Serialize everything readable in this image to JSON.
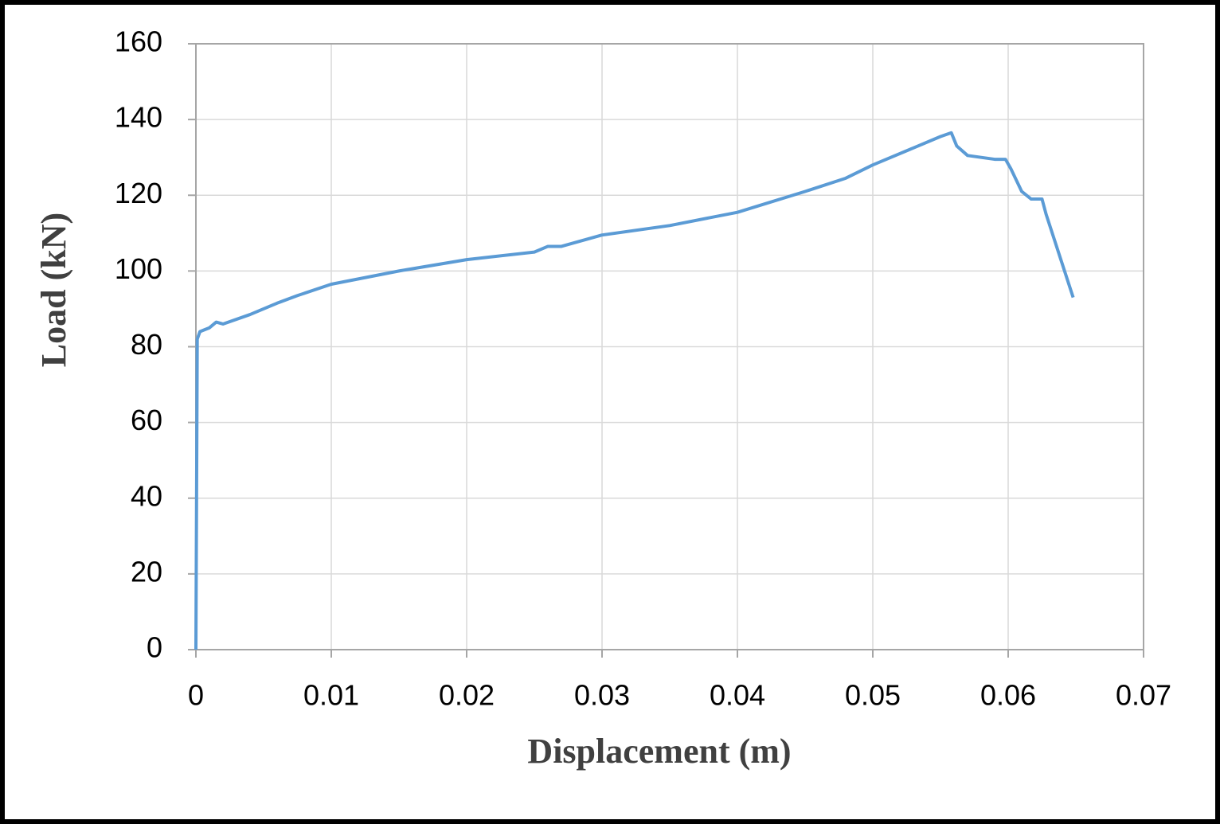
{
  "chart_data": {
    "type": "line",
    "x_label": "Displacement (m)",
    "y_label": "Load (kN)",
    "xlim": [
      0,
      0.07
    ],
    "xticks": [
      0,
      0.01,
      0.02,
      0.03,
      0.04,
      0.05,
      0.06,
      0.07
    ],
    "ylim": [
      0,
      160
    ],
    "yticks": [
      0,
      20,
      40,
      60,
      80,
      100,
      120,
      140,
      160
    ],
    "grid": true,
    "series": [
      {
        "color": "#5b9bd5",
        "x": [
          0,
          0.0001,
          0.0003,
          0.001,
          0.0015,
          0.002,
          0.004,
          0.006,
          0.0075,
          0.01,
          0.015,
          0.02,
          0.025,
          0.026,
          0.027,
          0.03,
          0.035,
          0.04,
          0.045,
          0.048,
          0.05,
          0.053,
          0.055,
          0.0558,
          0.0562,
          0.057,
          0.058,
          0.059,
          0.0598,
          0.0602,
          0.061,
          0.0617,
          0.0625,
          0.0628,
          0.0648
        ],
        "values": [
          0,
          82,
          84,
          85,
          86.5,
          86,
          88.5,
          91.5,
          93.5,
          96.5,
          100,
          103,
          105,
          106.5,
          106.5,
          109.5,
          112,
          115.5,
          121,
          124.5,
          128,
          132.5,
          135.5,
          136.5,
          133,
          130.5,
          130,
          129.5,
          129.5,
          127,
          121,
          119,
          119,
          115,
          93
        ]
      }
    ]
  }
}
